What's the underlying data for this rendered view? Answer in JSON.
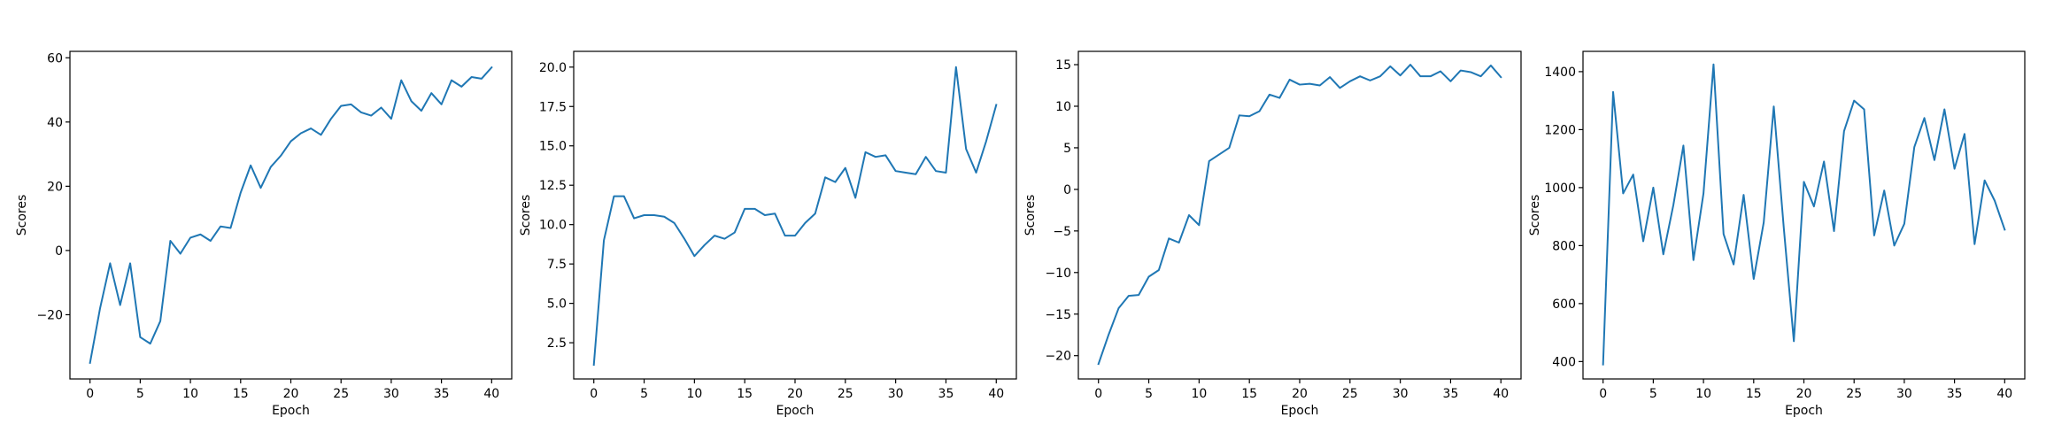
{
  "colors": {
    "line": "#1f77b4",
    "axes": "#000000",
    "background": "#ffffff"
  },
  "chart_data": [
    {
      "type": "line",
      "xlabel": "Epoch",
      "ylabel": "Scores",
      "xlim": [
        -2,
        42
      ],
      "ylim": [
        -40,
        62
      ],
      "xticks": [
        0,
        5,
        10,
        15,
        20,
        25,
        30,
        35,
        40
      ],
      "yticks": [
        -20,
        0,
        20,
        40,
        60
      ],
      "ytick_labels": [
        "−20",
        "0",
        "20",
        "40",
        "60"
      ],
      "grid": false,
      "x": [
        0,
        1,
        2,
        3,
        4,
        5,
        6,
        7,
        8,
        9,
        10,
        11,
        12,
        13,
        14,
        15,
        16,
        17,
        18,
        19,
        20,
        21,
        22,
        23,
        24,
        25,
        26,
        27,
        28,
        29,
        30,
        31,
        32,
        33,
        34,
        35,
        36,
        37,
        38,
        39,
        40
      ],
      "values": [
        -35,
        -18,
        -4,
        -17,
        -4,
        -27,
        -29,
        -22,
        3,
        -1,
        4,
        5,
        3,
        7.5,
        7,
        18,
        26.5,
        19.5,
        26,
        29.5,
        34,
        36.5,
        38,
        36,
        41,
        45,
        45.5,
        43,
        42,
        44.5,
        41,
        53,
        46.5,
        43.5,
        49,
        45.5,
        53,
        51,
        54,
        53.5,
        57
      ]
    },
    {
      "type": "line",
      "xlabel": "Epoch",
      "ylabel": "Scores",
      "xlim": [
        -2,
        42
      ],
      "ylim": [
        0.2,
        21.0
      ],
      "xticks": [
        0,
        5,
        10,
        15,
        20,
        25,
        30,
        35,
        40
      ],
      "yticks": [
        2.5,
        5.0,
        7.5,
        10.0,
        12.5,
        15.0,
        17.5,
        20.0
      ],
      "ytick_labels": [
        "2.5",
        "5.0",
        "7.5",
        "10.0",
        "12.5",
        "15.0",
        "17.5",
        "20.0"
      ],
      "grid": false,
      "x": [
        0,
        1,
        2,
        3,
        4,
        5,
        6,
        7,
        8,
        9,
        10,
        11,
        12,
        13,
        14,
        15,
        16,
        17,
        18,
        19,
        20,
        21,
        22,
        23,
        24,
        25,
        26,
        27,
        28,
        29,
        30,
        31,
        32,
        33,
        34,
        35,
        36,
        37,
        38,
        39,
        40
      ],
      "values": [
        1.1,
        9.0,
        11.8,
        11.8,
        10.4,
        10.6,
        10.6,
        10.5,
        10.1,
        9.1,
        8.0,
        8.7,
        9.3,
        9.1,
        9.5,
        11.0,
        11.0,
        10.6,
        10.7,
        9.3,
        9.3,
        10.1,
        10.7,
        13.0,
        12.7,
        13.6,
        11.7,
        14.6,
        14.3,
        14.4,
        13.4,
        13.3,
        13.2,
        14.3,
        13.4,
        13.3,
        20.0,
        14.8,
        13.3,
        15.3,
        17.6
      ]
    },
    {
      "type": "line",
      "xlabel": "Epoch",
      "ylabel": "Scores",
      "xlim": [
        -2,
        42
      ],
      "ylim": [
        -22.8,
        16.6
      ],
      "xticks": [
        0,
        5,
        10,
        15,
        20,
        25,
        30,
        35,
        40
      ],
      "yticks": [
        -20,
        -15,
        -10,
        -5,
        0,
        5,
        10,
        15
      ],
      "ytick_labels": [
        "−20",
        "−15",
        "−10",
        "−5",
        "0",
        "5",
        "10",
        "15"
      ],
      "grid": false,
      "x": [
        0,
        1,
        2,
        3,
        4,
        5,
        6,
        7,
        8,
        9,
        10,
        11,
        12,
        13,
        14,
        15,
        16,
        17,
        18,
        19,
        20,
        21,
        22,
        23,
        24,
        25,
        26,
        27,
        28,
        29,
        30,
        31,
        32,
        33,
        34,
        35,
        36,
        37,
        38,
        39,
        40
      ],
      "values": [
        -21,
        -17.5,
        -14.3,
        -12.8,
        -12.7,
        -10.5,
        -9.7,
        -5.9,
        -6.4,
        -3.1,
        -4.3,
        3.4,
        4.2,
        5.0,
        8.9,
        8.8,
        9.4,
        11.4,
        11.0,
        13.2,
        12.6,
        12.7,
        12.5,
        13.5,
        12.2,
        13.0,
        13.6,
        13.1,
        13.6,
        14.8,
        13.7,
        15.0,
        13.6,
        13.6,
        14.2,
        13.0,
        14.3,
        14.1,
        13.6,
        14.9,
        13.5
      ]
    },
    {
      "type": "line",
      "xlabel": "Epoch",
      "ylabel": "Scores",
      "xlim": [
        -2,
        42
      ],
      "ylim": [
        340,
        1470
      ],
      "xticks": [
        0,
        5,
        10,
        15,
        20,
        25,
        30,
        35,
        40
      ],
      "yticks": [
        400,
        600,
        800,
        1000,
        1200,
        1400
      ],
      "ytick_labels": [
        "400",
        "600",
        "800",
        "1000",
        "1200",
        "1400"
      ],
      "grid": false,
      "x": [
        0,
        1,
        2,
        3,
        4,
        5,
        6,
        7,
        8,
        9,
        10,
        11,
        12,
        13,
        14,
        15,
        16,
        17,
        18,
        19,
        20,
        21,
        22,
        23,
        24,
        25,
        26,
        27,
        28,
        29,
        30,
        31,
        32,
        33,
        34,
        35,
        36,
        37,
        38,
        39,
        40
      ],
      "values": [
        390,
        1330,
        980,
        1045,
        815,
        1000,
        770,
        940,
        1145,
        750,
        980,
        1425,
        840,
        735,
        975,
        685,
        880,
        1280,
        860,
        470,
        1020,
        935,
        1090,
        850,
        1195,
        1300,
        1270,
        835,
        990,
        800,
        875,
        1140,
        1240,
        1095,
        1270,
        1065,
        1185,
        805,
        1025,
        955,
        855
      ]
    }
  ]
}
